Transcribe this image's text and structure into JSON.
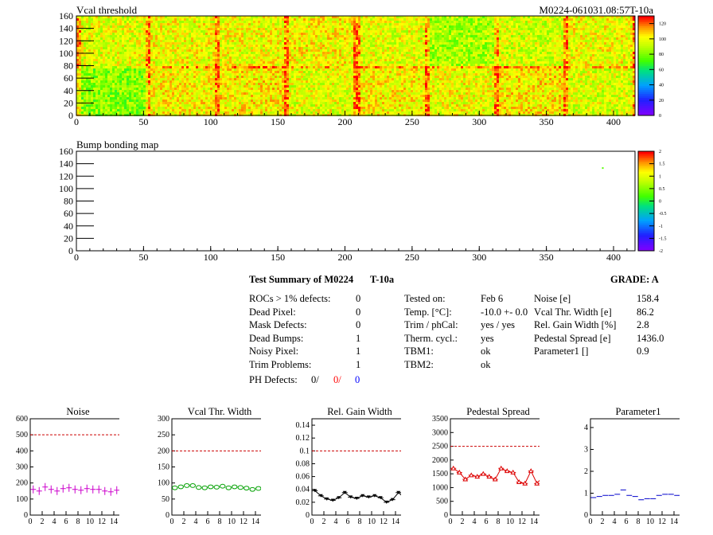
{
  "header": {
    "top_title": "Vcal threshold",
    "run_id": "M0224-061031.08:57T-10a",
    "bump_title": "Bump bonding map"
  },
  "summary": {
    "title": "Test Summary of M0224",
    "temp_tag": "T-10a",
    "grade": "GRADE:  A",
    "left_rows": [
      {
        "label": "ROCs > 1% defects:",
        "value": "0"
      },
      {
        "label": "Dead Pixel:",
        "value": "0"
      },
      {
        "label": "Mask Defects:",
        "value": "0"
      },
      {
        "label": "Dead Bumps:",
        "value": "1"
      },
      {
        "label": "Noisy Pixel:",
        "value": "1"
      },
      {
        "label": "Trim Problems:",
        "value": "1"
      }
    ],
    "ph_defects": {
      "label": "PH Defects:",
      "v1": "0/",
      "v2": "0/",
      "v3": "0"
    },
    "mid_rows": [
      {
        "label": "Tested on:",
        "value": "Feb 6"
      },
      {
        "label": "Temp. [°C]:",
        "value": "-10.0 +- 0.0"
      },
      {
        "label": "Trim / phCal:",
        "value": "yes / yes"
      },
      {
        "label": "Therm. cycl.:",
        "value": "yes"
      },
      {
        "label": "TBM1:",
        "value": "ok"
      },
      {
        "label": "TBM2:",
        "value": "ok"
      }
    ],
    "right_rows": [
      {
        "label": "Noise [e]",
        "value": "158.4"
      },
      {
        "label": "Vcal Thr. Width [e]",
        "value": "86.2"
      },
      {
        "label": "Rel. Gain Width [%]",
        "value": "2.8"
      },
      {
        "label": "Pedestal Spread [e]",
        "value": "1436.0"
      },
      {
        "label": "Parameter1 []",
        "value": "0.9"
      }
    ]
  },
  "colors": {
    "noise": "#cc00cc",
    "vcal": "#00a000",
    "gain": "#000000",
    "pedestal": "#dd0000",
    "param": "#0000cc",
    "limit": "#cc0000",
    "red": "#ff0000",
    "blue": "#0000ff"
  },
  "chart_data": [
    {
      "type": "heatmap",
      "title": "Vcal threshold",
      "xlim": [
        0,
        416
      ],
      "ylim": [
        0,
        160
      ],
      "x_ticks": [
        "0",
        "50",
        "100",
        "150",
        "200",
        "250",
        "300",
        "350",
        "400"
      ],
      "y_ticks": [
        "0",
        "20",
        "40",
        "60",
        "80",
        "100",
        "120",
        "140",
        "160"
      ],
      "z_ticks": [
        "0",
        "20",
        "40",
        "60",
        "80",
        "100",
        "120"
      ],
      "zlim": [
        0,
        130
      ],
      "roc_mean_levels_top": [
        98,
        100,
        100,
        102,
        98,
        88,
        95,
        100
      ],
      "roc_mean_levels_bottom": [
        82,
        102,
        104,
        98,
        102,
        100,
        104,
        96
      ]
    },
    {
      "type": "heatmap",
      "title": "Bump bonding map",
      "xlim": [
        0,
        416
      ],
      "ylim": [
        0,
        160
      ],
      "x_ticks": [
        "0",
        "50",
        "100",
        "150",
        "200",
        "250",
        "300",
        "350",
        "400"
      ],
      "y_ticks": [
        "0",
        "20",
        "40",
        "60",
        "80",
        "100",
        "120",
        "140",
        "160"
      ],
      "z_ticks": [
        "-2",
        "-1.5",
        "-1",
        "-0.5",
        "0",
        "0.5",
        "1",
        "1.5",
        "2"
      ],
      "zlim": [
        -2,
        2
      ],
      "points": [
        {
          "x": 392,
          "y": 133,
          "z": 0.3
        }
      ]
    },
    {
      "type": "scatter",
      "title": "Noise",
      "xlim": [
        0,
        16
      ],
      "ylim": [
        0,
        600
      ],
      "x_ticks": [
        "0",
        "2",
        "4",
        "6",
        "8",
        "10",
        "12",
        "14",
        "16"
      ],
      "y_ticks": [
        "0",
        "100",
        "200",
        "300",
        "400",
        "500",
        "600"
      ],
      "limit": 500,
      "x": [
        0.5,
        1.5,
        2.5,
        3.5,
        4.5,
        5.5,
        6.5,
        7.5,
        8.5,
        9.5,
        10.5,
        11.5,
        12.5,
        13.5,
        14.5,
        15.5
      ],
      "values": [
        160,
        150,
        175,
        160,
        150,
        165,
        170,
        160,
        155,
        165,
        160,
        160,
        150,
        145,
        155,
        160
      ]
    },
    {
      "type": "scatter",
      "title": "Vcal Thr. Width",
      "xlim": [
        0,
        16
      ],
      "ylim": [
        0,
        300
      ],
      "x_ticks": [
        "0",
        "2",
        "4",
        "6",
        "8",
        "10",
        "12",
        "14",
        "16"
      ],
      "y_ticks": [
        "0",
        "50",
        "100",
        "150",
        "200",
        "250",
        "300"
      ],
      "limit": 200,
      "x": [
        0.5,
        1.5,
        2.5,
        3.5,
        4.5,
        5.5,
        6.5,
        7.5,
        8.5,
        9.5,
        10.5,
        11.5,
        12.5,
        13.5,
        14.5,
        15.5
      ],
      "values": [
        85,
        88,
        92,
        92,
        86,
        85,
        88,
        87,
        90,
        85,
        88,
        86,
        84,
        80,
        83,
        86
      ]
    },
    {
      "type": "line",
      "title": "Rel. Gain Width",
      "xlim": [
        0,
        16
      ],
      "ylim": [
        0,
        0.15
      ],
      "x_ticks": [
        "0",
        "2",
        "4",
        "6",
        "8",
        "10",
        "12",
        "14",
        "16"
      ],
      "y_ticks": [
        "0",
        "0.02",
        "0.04",
        "0.06",
        "0.08",
        "0.1",
        "0.12",
        "0.14"
      ],
      "limit": 0.1,
      "x": [
        0.5,
        1.5,
        2.5,
        3.5,
        4.5,
        5.5,
        6.5,
        7.5,
        8.5,
        9.5,
        10.5,
        11.5,
        12.5,
        13.5,
        14.5,
        15.5
      ],
      "values": [
        0.038,
        0.03,
        0.025,
        0.023,
        0.027,
        0.035,
        0.028,
        0.026,
        0.03,
        0.028,
        0.03,
        0.027,
        0.02,
        0.024,
        0.035,
        0.027
      ]
    },
    {
      "type": "line",
      "title": "Pedestal Spread",
      "xlim": [
        0,
        16
      ],
      "ylim": [
        0,
        3500
      ],
      "x_ticks": [
        "0",
        "2",
        "4",
        "6",
        "8",
        "10",
        "12",
        "14",
        "16"
      ],
      "y_ticks": [
        "0",
        "500",
        "1000",
        "1500",
        "2000",
        "2500",
        "3000",
        "3500"
      ],
      "limit": 2500,
      "x": [
        0.5,
        1.5,
        2.5,
        3.5,
        4.5,
        5.5,
        6.5,
        7.5,
        8.5,
        9.5,
        10.5,
        11.5,
        12.5,
        13.5,
        14.5,
        15.5
      ],
      "values": [
        1700,
        1550,
        1300,
        1450,
        1400,
        1500,
        1400,
        1300,
        1700,
        1600,
        1550,
        1200,
        1150,
        1600,
        1150,
        1400
      ]
    },
    {
      "type": "scatter",
      "title": "Parameter1",
      "xlim": [
        0,
        16
      ],
      "ylim": [
        0,
        4.4
      ],
      "x_ticks": [
        "0",
        "2",
        "4",
        "6",
        "8",
        "10",
        "12",
        "14",
        "16"
      ],
      "y_ticks": [
        "0",
        "1",
        "2",
        "3",
        "4"
      ],
      "x": [
        0.5,
        1.5,
        2.5,
        3.5,
        4.5,
        5.5,
        6.5,
        7.5,
        8.5,
        9.5,
        10.5,
        11.5,
        12.5,
        13.5,
        14.5,
        15.5
      ],
      "values": [
        0.8,
        0.85,
        0.9,
        0.9,
        0.95,
        1.15,
        0.9,
        0.85,
        0.7,
        0.75,
        0.75,
        0.9,
        0.95,
        0.95,
        0.9,
        1.15
      ]
    }
  ]
}
